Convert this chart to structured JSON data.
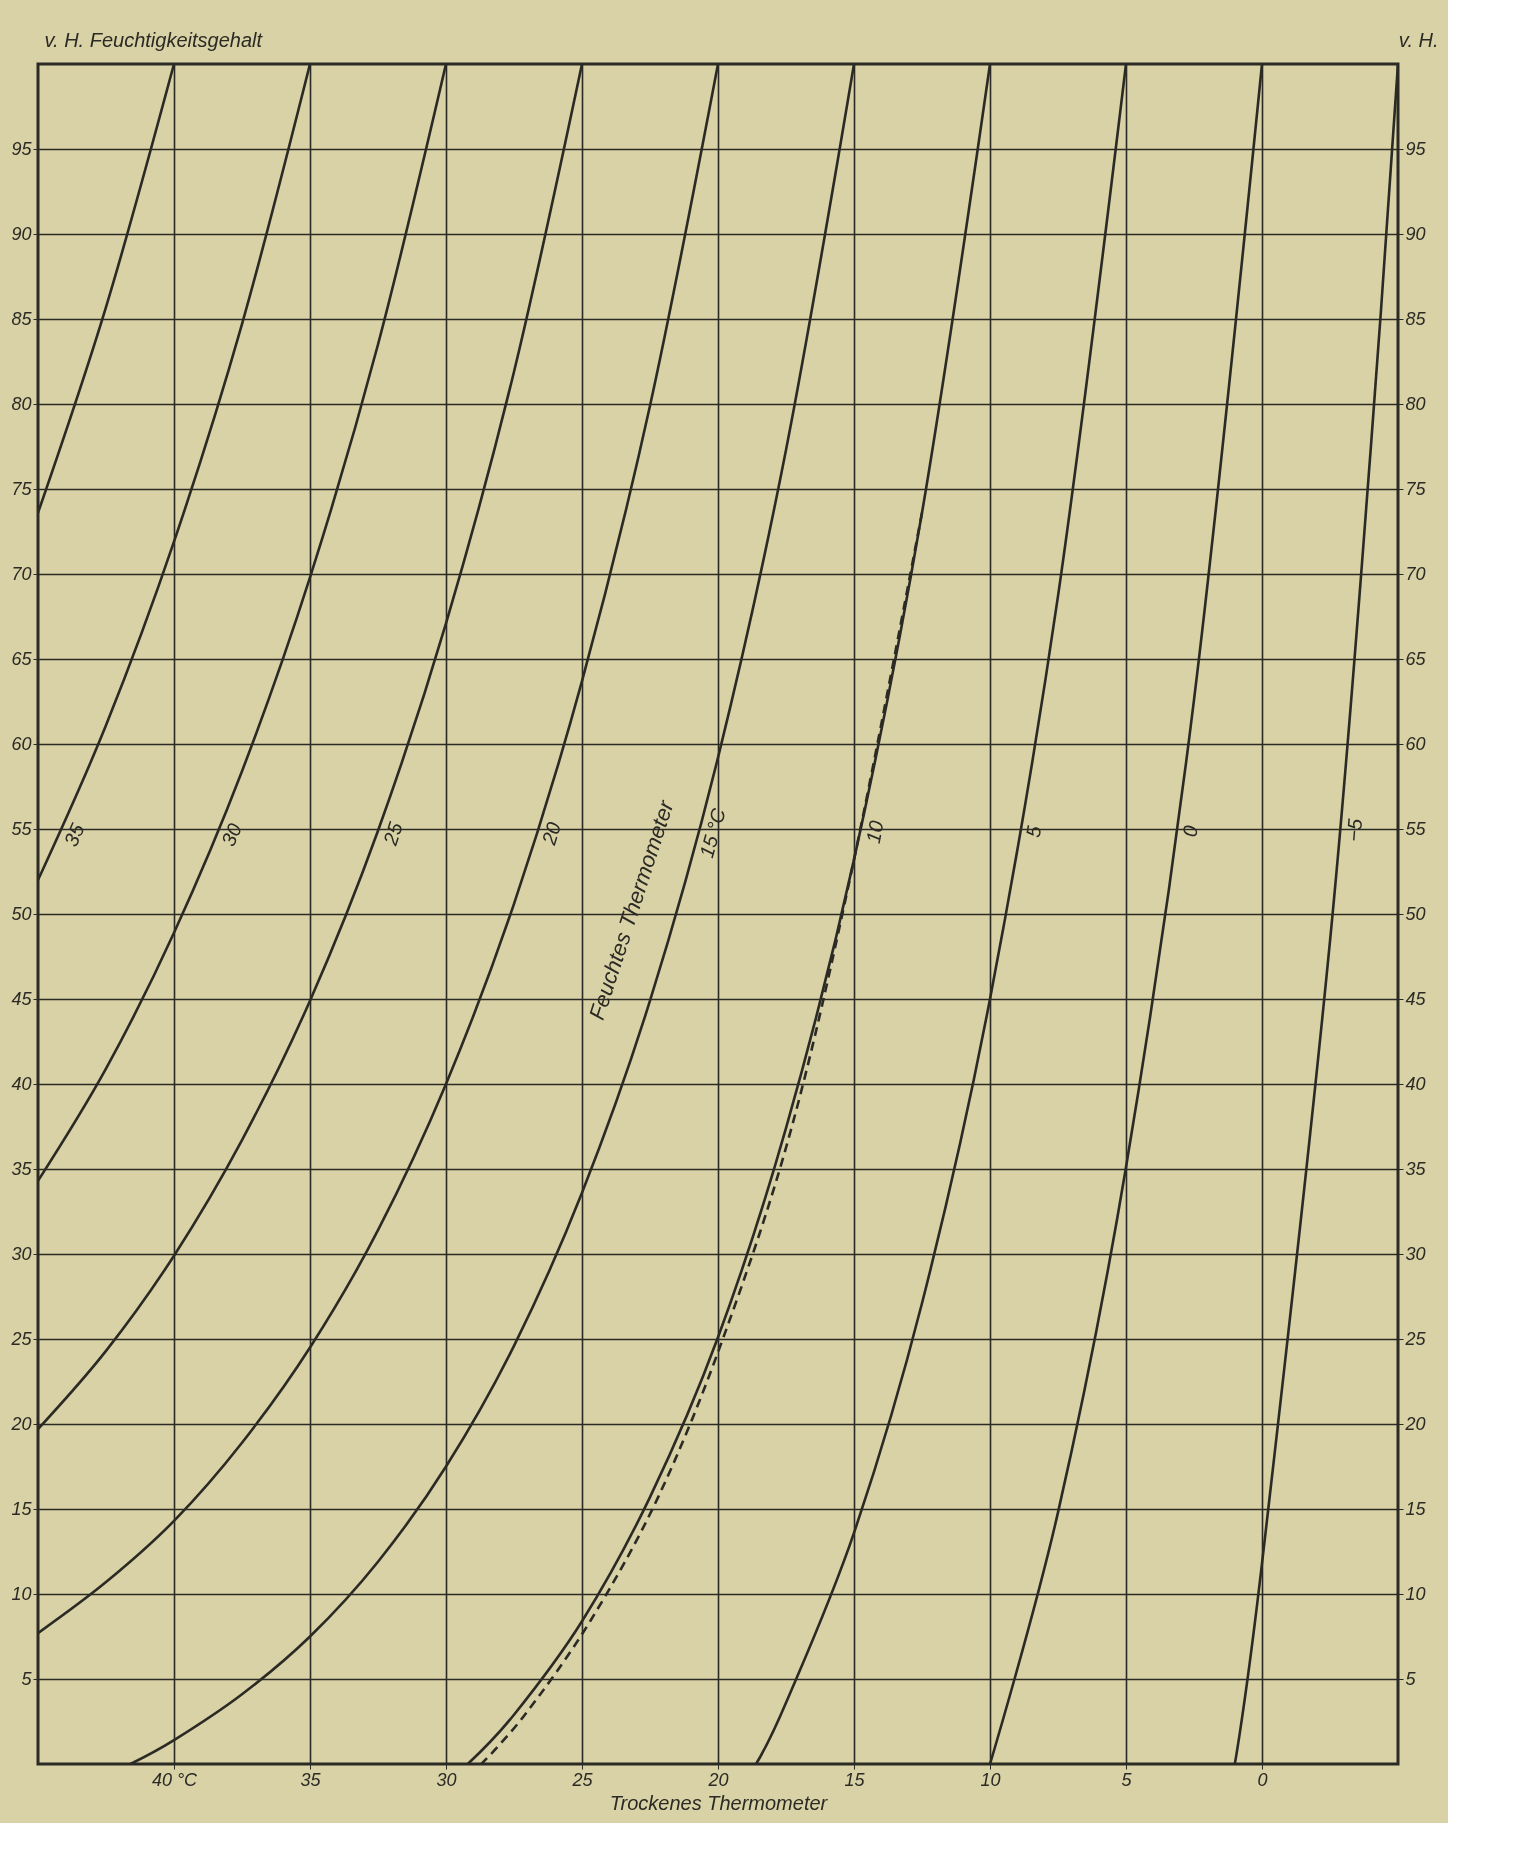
{
  "chart_data": {
    "type": "line",
    "xlabel": "Trockenes Thermometer",
    "ylabel": "v. H. Feuchtigkeitsgehalt",
    "y2label": "v. H.",
    "annotations": [
      "Feuchtes Thermometer"
    ],
    "xlim": [
      45,
      -5
    ],
    "xticks": [
      {
        "value": 40,
        "label": "40 °C"
      },
      35,
      30,
      25,
      20,
      15,
      10,
      5,
      0
    ],
    "ylim": [
      0,
      100
    ],
    "yticks": [
      5,
      10,
      15,
      20,
      25,
      30,
      35,
      40,
      45,
      50,
      55,
      60,
      65,
      70,
      75,
      80,
      85,
      90,
      95
    ],
    "y2lim": [
      0,
      100
    ],
    "y2ticks": [
      5,
      10,
      15,
      20,
      25,
      30,
      35,
      40,
      45,
      50,
      55,
      60,
      65,
      70,
      75,
      80,
      85,
      90,
      95
    ],
    "grid": true,
    "series": [
      {
        "color": "#2b2a24",
        "x": [
          40,
          42.5,
          45
        ],
        "values": [
          100,
          85.7,
          73.6
        ]
      },
      {
        "name": "35",
        "color": "#2b2a24",
        "x": [
          35,
          37.5,
          40,
          42.5,
          45
        ],
        "values": [
          100,
          84.7,
          71.9,
          61.1,
          52.0
        ]
      },
      {
        "name": "30",
        "color": "#2b2a24",
        "x": [
          30,
          32.5,
          35,
          37.5,
          40,
          42.5,
          45
        ],
        "values": [
          100,
          83.5,
          69.8,
          58.4,
          48.9,
          40.9,
          34.3
        ]
      },
      {
        "name": "25",
        "color": "#2b2a24",
        "x": [
          25,
          27.5,
          30,
          32.5,
          35,
          37.5,
          40,
          42.5,
          45
        ],
        "values": [
          100,
          81.9,
          67.1,
          54.9,
          44.9,
          36.7,
          29.9,
          24.3,
          19.7
        ]
      },
      {
        "name": "20",
        "color": "#2b2a24",
        "x": [
          20,
          22.5,
          25,
          27.5,
          30,
          32.5,
          35,
          37.5,
          40,
          42.5,
          45
        ],
        "values": [
          100,
          79.9,
          63.7,
          50.6,
          40.0,
          31.4,
          24.5,
          18.9,
          14.3,
          10.7,
          7.7
        ]
      },
      {
        "name": "15 °C",
        "color": "#2b2a24",
        "x": [
          15,
          17.5,
          20,
          22.5,
          25,
          27.5,
          30,
          32.5,
          35,
          37.5,
          40,
          41.6
        ],
        "values": [
          100,
          77.3,
          59.2,
          44.9,
          33.6,
          24.6,
          17.5,
          11.9,
          7.5,
          4.1,
          1.4,
          0
        ]
      },
      {
        "name": "10",
        "color": "#2b2a24",
        "x": [
          10,
          12.5,
          15,
          17.5,
          20,
          22.5,
          25,
          27.5,
          29.2
        ],
        "values": [
          100,
          73.6,
          53.2,
          37.4,
          25.1,
          15.7,
          8.4,
          2.9,
          0
        ]
      },
      {
        "color": "#2b2a24",
        "line_style": "dashed",
        "x": [
          12.5,
          15,
          17.3,
          19.8,
          22.2,
          24.7,
          27.1,
          28.7
        ],
        "values": [
          73.6,
          53.2,
          37.4,
          25.1,
          15.7,
          8.4,
          2.9,
          0
        ]
      },
      {
        "name": "5",
        "color": "#2b2a24",
        "x": [
          5,
          7.5,
          10,
          12.5,
          15,
          17.5,
          18.6
        ],
        "values": [
          100,
          68.7,
          45.0,
          27.1,
          13.6,
          3.6,
          0
        ]
      },
      {
        "name": "0",
        "color": "#2b2a24",
        "x": [
          0,
          2.5,
          5,
          7.5,
          10
        ],
        "values": [
          100,
          62.6,
          35.1,
          14.8,
          0
        ]
      },
      {
        "name": "−5",
        "color": "#2b2a24",
        "x": [
          -5,
          -4,
          -2.5,
          0,
          1
        ],
        "values": [
          100,
          77.4,
          48.4,
          11.8,
          0
        ]
      }
    ]
  }
}
